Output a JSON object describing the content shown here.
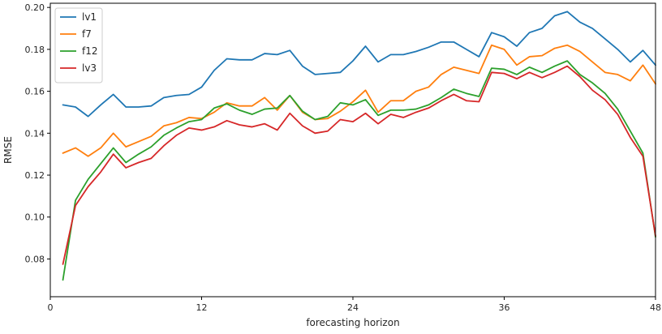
{
  "chart_data": {
    "type": "line",
    "title": "",
    "xlabel": "forecasting horizon",
    "ylabel": "RMSE",
    "xlim": [
      0,
      48
    ],
    "ylim": [
      0.062,
      0.202
    ],
    "xticks": [
      0,
      12,
      24,
      36,
      48
    ],
    "yticks": [
      0.08,
      0.1,
      0.12,
      0.14,
      0.16,
      0.18,
      0.2
    ],
    "ytick_labels": [
      "0.08",
      "0.10",
      "0.12",
      "0.14",
      "0.16",
      "0.18",
      "0.20"
    ],
    "grid": false,
    "legend_position": "top-left",
    "x": [
      1,
      2,
      3,
      4,
      5,
      6,
      7,
      8,
      9,
      10,
      11,
      12,
      13,
      14,
      15,
      16,
      17,
      18,
      19,
      20,
      21,
      22,
      23,
      24,
      25,
      26,
      27,
      28,
      29,
      30,
      31,
      32,
      33,
      34,
      35,
      36,
      37,
      38,
      39,
      40,
      41,
      42,
      43,
      44,
      45,
      46,
      47,
      48
    ],
    "series": [
      {
        "name": "lv1",
        "color": "#1f77b4",
        "values": [
          0.1535,
          0.1525,
          0.148,
          0.1535,
          0.1585,
          0.1525,
          0.1525,
          0.153,
          0.157,
          0.158,
          0.1585,
          0.162,
          0.17,
          0.1755,
          0.175,
          0.175,
          0.178,
          0.1775,
          0.1795,
          0.172,
          0.168,
          0.1685,
          0.169,
          0.1745,
          0.1815,
          0.174,
          0.1775,
          0.1775,
          0.179,
          0.181,
          0.1835,
          0.1835,
          0.18,
          0.1765,
          0.188,
          0.186,
          0.1815,
          0.188,
          0.19,
          0.196,
          0.198,
          0.193,
          0.19,
          0.185,
          0.18,
          0.174,
          0.1795,
          0.1725
        ]
      },
      {
        "name": "f7",
        "color": "#ff7f0e",
        "values": [
          0.1305,
          0.133,
          0.129,
          0.133,
          0.14,
          0.1335,
          0.136,
          0.1385,
          0.1435,
          0.145,
          0.1475,
          0.147,
          0.15,
          0.1545,
          0.153,
          0.153,
          0.157,
          0.151,
          0.158,
          0.15,
          0.1465,
          0.147,
          0.1505,
          0.155,
          0.1605,
          0.15,
          0.1555,
          0.1555,
          0.16,
          0.162,
          0.168,
          0.1715,
          0.17,
          0.1685,
          0.182,
          0.18,
          0.1725,
          0.1765,
          0.177,
          0.1805,
          0.182,
          0.179,
          0.174,
          0.169,
          0.168,
          0.165,
          0.1725,
          0.1635
        ]
      },
      {
        "name": "f12",
        "color": "#2ca02c",
        "values": [
          0.07,
          0.108,
          0.118,
          0.1255,
          0.133,
          0.126,
          0.13,
          0.1335,
          0.139,
          0.1425,
          0.1455,
          0.1465,
          0.152,
          0.154,
          0.151,
          0.149,
          0.1515,
          0.152,
          0.158,
          0.1505,
          0.1465,
          0.148,
          0.1545,
          0.1535,
          0.156,
          0.1485,
          0.151,
          0.151,
          0.1515,
          0.1535,
          0.157,
          0.161,
          0.159,
          0.1575,
          0.171,
          0.1705,
          0.168,
          0.1715,
          0.169,
          0.172,
          0.1745,
          0.168,
          0.164,
          0.159,
          0.1515,
          0.141,
          0.1305,
          0.0905
        ]
      },
      {
        "name": "lv3",
        "color": "#d62728",
        "values": [
          0.0775,
          0.1055,
          0.1145,
          0.1215,
          0.13,
          0.1235,
          0.126,
          0.128,
          0.134,
          0.139,
          0.1425,
          0.1415,
          0.143,
          0.146,
          0.144,
          0.143,
          0.1445,
          0.1415,
          0.1495,
          0.1435,
          0.14,
          0.141,
          0.1465,
          0.1455,
          0.1495,
          0.1445,
          0.149,
          0.1475,
          0.15,
          0.152,
          0.1555,
          0.1585,
          0.1555,
          0.155,
          0.169,
          0.1685,
          0.166,
          0.169,
          0.1665,
          0.169,
          0.172,
          0.167,
          0.1605,
          0.156,
          0.149,
          0.138,
          0.129,
          0.091
        ]
      }
    ]
  }
}
